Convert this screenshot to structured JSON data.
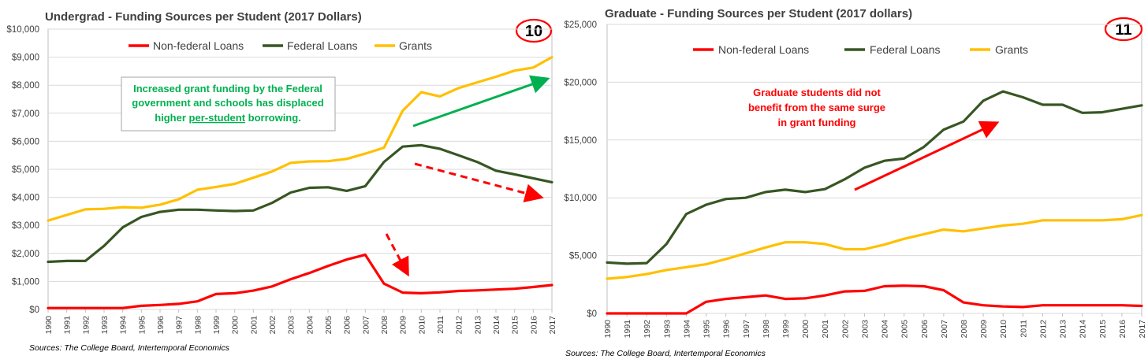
{
  "colors": {
    "nonfederal": "#ff0000",
    "federal": "#375623",
    "grants": "#ffc000",
    "annotation_green": "#00b050",
    "annotation_red": "#ff0000",
    "grid": "#d9d9d9",
    "axis_text": "#404040"
  },
  "chart_data": [
    {
      "type": "line",
      "title": "Undergrad - Funding Sources per Student (2017 Dollars)",
      "badge": "10",
      "source": "Sources: The College Board, Intertemporal Economics",
      "x": [
        1990,
        1991,
        1992,
        1993,
        1994,
        1995,
        1996,
        1997,
        1998,
        1999,
        2000,
        2001,
        2002,
        2003,
        2004,
        2005,
        2006,
        2007,
        2008,
        2009,
        2010,
        2011,
        2012,
        2013,
        2014,
        2015,
        2016,
        2017
      ],
      "x_tick_labels": [
        "1990",
        "1991",
        "1992",
        "1993",
        "1994",
        "1995",
        "1996",
        "1997",
        "1998",
        "1999",
        "2000",
        "2001",
        "2002",
        "2003",
        "2004",
        "2005",
        "2006",
        "2007",
        "2008",
        "2009",
        "2010",
        "2011",
        "2012",
        "2013",
        "2014",
        "2015",
        "2016",
        "2017"
      ],
      "ylim": [
        0,
        10000
      ],
      "y_ticks": [
        0,
        1000,
        2000,
        3000,
        4000,
        5000,
        6000,
        7000,
        8000,
        9000,
        10000
      ],
      "y_tick_labels": [
        "$0",
        "$1,000",
        "$2,000",
        "$3,000",
        "$4,000",
        "$5,000",
        "$6,000",
        "$7,000",
        "$8,000",
        "$9,000",
        "$10,000"
      ],
      "grid": true,
      "legend_position": "top",
      "series": [
        {
          "name": "Non-federal Loans",
          "color_key": "nonfederal",
          "values": [
            50,
            50,
            50,
            50,
            50,
            130,
            160,
            200,
            290,
            550,
            580,
            670,
            820,
            1080,
            1300,
            1550,
            1780,
            1950,
            920,
            600,
            580,
            610,
            660,
            680,
            710,
            740,
            800,
            870
          ]
        },
        {
          "name": "Federal Loans",
          "color_key": "federal",
          "values": [
            1700,
            1730,
            1730,
            2270,
            2930,
            3300,
            3480,
            3560,
            3560,
            3530,
            3510,
            3530,
            3800,
            4170,
            4340,
            4360,
            4230,
            4400,
            5260,
            5810,
            5860,
            5730,
            5500,
            5260,
            4950,
            4820,
            4680,
            4540
          ]
        },
        {
          "name": "Grants",
          "color_key": "grants",
          "values": [
            3170,
            3370,
            3570,
            3590,
            3650,
            3630,
            3740,
            3930,
            4270,
            4370,
            4480,
            4700,
            4920,
            5230,
            5280,
            5290,
            5370,
            5560,
            5770,
            7090,
            7750,
            7600,
            7900,
            8100,
            8300,
            8520,
            8630,
            9000
          ]
        }
      ],
      "annotations": [
        {
          "lines": [
            "Increased grant funding by the Federal",
            "government and schools has displaced"
          ],
          "last_line_prefix": "higher ",
          "last_line_underlined": "per-student",
          "last_line_suffix": " borrowing."
        }
      ]
    },
    {
      "type": "line",
      "title": "Graduate - Funding Sources per Student (2017 dollars)",
      "badge": "11",
      "source": "Sources: The College Board, Intertemporal Economics",
      "x": [
        1990,
        1991,
        1992,
        1993,
        1994,
        1995,
        1996,
        1997,
        1998,
        1999,
        2000,
        2001,
        2002,
        2003,
        2004,
        2005,
        2006,
        2007,
        2008,
        2009,
        2010,
        2011,
        2012,
        2013,
        2014,
        2015,
        2016,
        2017
      ],
      "x_tick_labels": [
        "1990",
        "1991",
        "1992",
        "1993",
        "1994",
        "1995",
        "1996",
        "1997",
        "1998",
        "1999",
        "2000",
        "2001",
        "2002",
        "2003",
        "2004",
        "2005",
        "2006",
        "2007",
        "2008",
        "2009",
        "2010",
        "2011",
        "2012",
        "2013",
        "2014",
        "2015",
        "2016",
        "2017"
      ],
      "ylim": [
        0,
        25000
      ],
      "y_ticks": [
        0,
        5000,
        10000,
        15000,
        20000,
        25000
      ],
      "y_tick_labels": [
        "$0",
        "$5,000",
        "$10,000",
        "$15,000",
        "$20,000",
        "$25,000"
      ],
      "grid": true,
      "legend_position": "top",
      "series": [
        {
          "name": "Non-federal Loans",
          "color_key": "nonfederal",
          "values": [
            0,
            0,
            0,
            0,
            0,
            1000,
            1250,
            1400,
            1550,
            1250,
            1300,
            1550,
            1900,
            1950,
            2350,
            2400,
            2350,
            2000,
            950,
            700,
            600,
            550,
            700,
            700,
            700,
            700,
            700,
            650
          ]
        },
        {
          "name": "Federal Loans",
          "color_key": "federal",
          "values": [
            4400,
            4300,
            4350,
            6000,
            8600,
            9400,
            9900,
            10000,
            10500,
            10700,
            10500,
            10750,
            11600,
            12600,
            13200,
            13400,
            14400,
            15900,
            16600,
            18400,
            19200,
            18700,
            18050,
            18050,
            17350,
            17400,
            17700,
            18000
          ]
        },
        {
          "name": "Grants",
          "color_key": "grants",
          "values": [
            3000,
            3150,
            3400,
            3750,
            4000,
            4250,
            4700,
            5200,
            5700,
            6150,
            6150,
            6000,
            5550,
            5550,
            5950,
            6450,
            6850,
            7250,
            7100,
            7350,
            7600,
            7750,
            8050,
            8050,
            8050,
            8050,
            8150,
            8500
          ]
        }
      ],
      "annotations": [
        {
          "lines": [
            "Graduate students did not",
            "benefit from the same surge",
            "in grant funding"
          ]
        }
      ]
    }
  ]
}
